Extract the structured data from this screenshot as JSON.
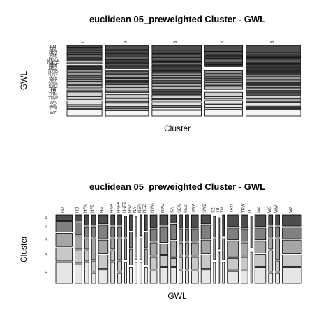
{
  "chart_data": [
    {
      "type": "mosaic",
      "title": "euclidean 05_preweighted Cluster - GWL",
      "x_label": "Cluster",
      "y_label": "GWL",
      "x_categories": [
        "1",
        "2",
        "3",
        "4",
        "5"
      ],
      "y_categories": [
        "BM",
        "HB",
        "HFA",
        "HFZ",
        "HM",
        "HNA",
        "HNFA",
        "HNFZ",
        "HNZ",
        "NA",
        "NEA",
        "NEZ",
        "NWA",
        "NWZ",
        "SA",
        "SEA",
        "SEZ",
        "SWA",
        "SWZ",
        "SZ",
        "TB",
        "TM",
        "TRM",
        "TRW",
        "U",
        "WA",
        "WS",
        "WW",
        "WZ"
      ],
      "values": [
        [
          2,
          1,
          1,
          1,
          2,
          1,
          1,
          0,
          1,
          0,
          1,
          1,
          2,
          2,
          1,
          1,
          1,
          2,
          2,
          0,
          0,
          1,
          3,
          2,
          0,
          3,
          1,
          1,
          5
        ],
        [
          4,
          2,
          1,
          1,
          3,
          1,
          1,
          1,
          1,
          1,
          0,
          1,
          2,
          3,
          2,
          1,
          1,
          2,
          3,
          1,
          0,
          0,
          3,
          2,
          1,
          3,
          1,
          1,
          5
        ],
        [
          5,
          2,
          1,
          2,
          3,
          1,
          2,
          1,
          1,
          1,
          1,
          1,
          2,
          2,
          2,
          1,
          1,
          2,
          3,
          1,
          1,
          1,
          4,
          2,
          0,
          3,
          1,
          2,
          6
        ],
        [
          5,
          2,
          1,
          1,
          3,
          1,
          1,
          0,
          0,
          0,
          0,
          0,
          2,
          2,
          1,
          1,
          1,
          2,
          3,
          0,
          0,
          0,
          3,
          2,
          0,
          3,
          2,
          1,
          5
        ],
        [
          8,
          3,
          2,
          1,
          3,
          2,
          1,
          1,
          1,
          1,
          1,
          1,
          2,
          3,
          2,
          1,
          1,
          2,
          3,
          1,
          1,
          1,
          3,
          2,
          1,
          4,
          1,
          1,
          7
        ]
      ],
      "colors": [
        "#4d4d4d",
        "#535353",
        "#595959",
        "#5f5f5f",
        "#656565",
        "#6b6b6b",
        "#717171",
        "#777777",
        "#7d7d7d",
        "#838383",
        "#898989",
        "#8f8f8f",
        "#959595",
        "#9b9b9b",
        "#a1a1a1",
        "#a7a7a7",
        "#adadad",
        "#b3b3b3",
        "#b9b9b9",
        "#bfbfbf",
        "#c5c5c5",
        "#cbcbcb",
        "#d1d1d1",
        "#d7d7d7",
        "#dddddd",
        "#e3e3e3",
        "#e9e9e9",
        "#efefef",
        "#f5f5f5"
      ]
    },
    {
      "type": "mosaic",
      "title": "euclidean 05_preweighted Cluster - GWL",
      "x_label": "GWL",
      "y_label": "Cluster",
      "x_categories": [
        "BM",
        "HB",
        "HFA",
        "HFZ",
        "HM",
        "HNA",
        "HNFA",
        "HNFZ",
        "HNZ",
        "NA",
        "NEA",
        "NEZ",
        "NWA",
        "NWZ",
        "SA",
        "SEA",
        "SEZ",
        "SWA",
        "SWZ",
        "SZ",
        "TB",
        "TM",
        "TRM",
        "TRW",
        "U",
        "WA",
        "WS",
        "WW",
        "WZ"
      ],
      "y_categories": [
        "1",
        "2",
        "3",
        "4",
        "5"
      ],
      "values": [
        [
          2,
          4,
          5,
          5,
          8
        ],
        [
          1,
          2,
          2,
          2,
          3
        ],
        [
          1,
          1,
          1,
          1,
          2
        ],
        [
          1,
          1,
          2,
          1,
          1
        ],
        [
          2,
          3,
          3,
          3,
          3
        ],
        [
          1,
          1,
          1,
          1,
          2
        ],
        [
          1,
          1,
          2,
          1,
          1
        ],
        [
          0,
          1,
          1,
          0,
          1
        ],
        [
          1,
          1,
          1,
          0,
          1
        ],
        [
          0,
          1,
          1,
          0,
          1
        ],
        [
          1,
          0,
          1,
          0,
          1
        ],
        [
          1,
          1,
          1,
          0,
          1
        ],
        [
          2,
          2,
          2,
          2,
          2
        ],
        [
          2,
          3,
          2,
          2,
          3
        ],
        [
          1,
          2,
          2,
          1,
          2
        ],
        [
          1,
          1,
          1,
          1,
          1
        ],
        [
          1,
          1,
          1,
          1,
          1
        ],
        [
          2,
          2,
          2,
          2,
          2
        ],
        [
          2,
          3,
          3,
          3,
          3
        ],
        [
          0,
          1,
          1,
          0,
          1
        ],
        [
          0,
          0,
          1,
          0,
          1
        ],
        [
          1,
          0,
          1,
          0,
          1
        ],
        [
          3,
          3,
          4,
          3,
          3
        ],
        [
          2,
          2,
          2,
          2,
          2
        ],
        [
          0,
          1,
          0,
          0,
          1
        ],
        [
          3,
          3,
          3,
          3,
          4
        ],
        [
          1,
          1,
          1,
          2,
          1
        ],
        [
          1,
          1,
          2,
          1,
          1
        ],
        [
          5,
          5,
          6,
          5,
          7
        ]
      ],
      "colors": [
        "#4d4d4d",
        "#808080",
        "#a6a6a6",
        "#c8c8c8",
        "#e6e6e6"
      ]
    }
  ]
}
